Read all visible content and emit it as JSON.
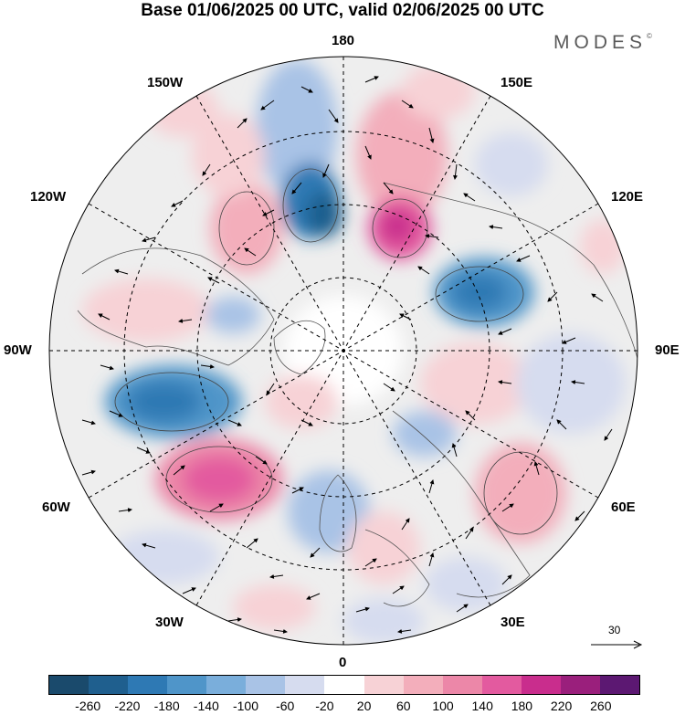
{
  "title": "Base 01/06/2025 00 UTC, valid 02/06/2025 00 UTC",
  "brand": "MODES",
  "brand_mark": "©",
  "longitude_labels": {
    "lon_180": "180",
    "lon_150e": "150E",
    "lon_120e": "120E",
    "lon_90e": "90E",
    "lon_60e": "60E",
    "lon_30e": "30E",
    "lon_0": "0",
    "lon_30w": "30W",
    "lon_60w": "60W",
    "lon_90w": "90W",
    "lon_120w": "120W",
    "lon_150w": "150W"
  },
  "reference_vector_label": "30",
  "colorbar": {
    "colors": [
      "#1a4a6c",
      "#1f5f8e",
      "#2e79b4",
      "#4f95c9",
      "#7aaedb",
      "#a9c3e6",
      "#d6dcef",
      "#ffffff",
      "#f7d2d6",
      "#f3aebb",
      "#ec87a8",
      "#e35a9f",
      "#c92d8d",
      "#9a1f7c",
      "#5c1872"
    ],
    "ticks": [
      "-260",
      "-220",
      "-180",
      "-140",
      "-100",
      "-60",
      "-20",
      "20",
      "60",
      "100",
      "140",
      "180",
      "220",
      "260"
    ]
  }
}
